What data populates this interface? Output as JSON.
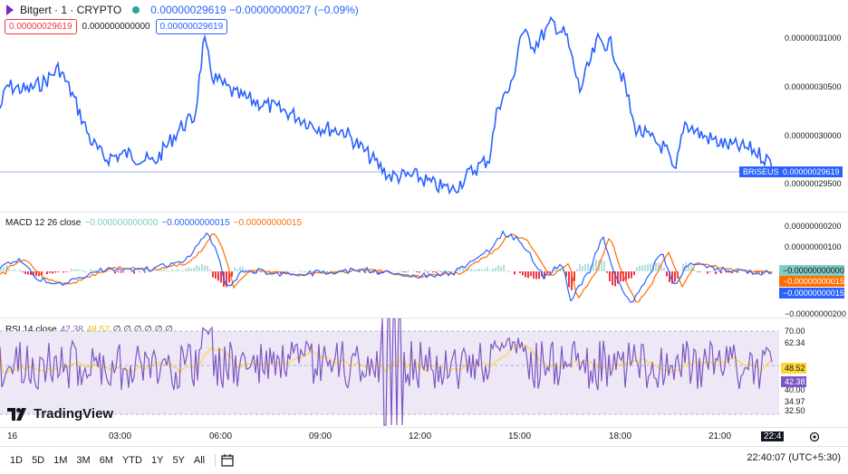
{
  "header": {
    "symbol": "Bitgert · 1 · CRYPTO",
    "quote": "0.00000029619 −0.00000000027 (−0.09%)",
    "bid": "0.00000029619",
    "spread": "0.000000000000",
    "ask": "0.00000029619"
  },
  "price_axis": {
    "labels": [
      "0.00000031000",
      "0.00000030500",
      "0.00000030000",
      "0.00000029500"
    ],
    "symbol_tag": "BRISEUSC",
    "last_price": "0.00000029619"
  },
  "macd": {
    "label": "MACD 12 26 close",
    "v1": "−0.000000000000",
    "v2": "−0.00000000015",
    "v3": "−0.00000000015",
    "axis": [
      "0.00000000200",
      "0.00000000100",
      "−0.00000000200"
    ],
    "tag_hist": "−0.00000000000",
    "tag_signal": "−0.00000000015",
    "tag_macd": "−0.00000000015"
  },
  "rsi": {
    "label": "RSI 14 close",
    "v1": "42.38",
    "v2": "48.52",
    "rest": "∅ ∅ ∅ ∅ ∅ ∅",
    "axis": [
      "70.00",
      "62.34",
      "40.00",
      "34.97",
      "32.50"
    ],
    "tag_ma": "48.52",
    "tag_rsi": "42.38"
  },
  "time_axis": [
    "16",
    "03:00",
    "06:00",
    "09:00",
    "12:00",
    "15:00",
    "18:00",
    "21:00",
    "22:4"
  ],
  "timeframes": [
    "1D",
    "5D",
    "1M",
    "3M",
    "6M",
    "YTD",
    "1Y",
    "5Y",
    "All"
  ],
  "clock": "22:40:07 (UTC+5:30)",
  "brand": "TradingView",
  "colors": {
    "price": "#2962ff",
    "macd_line": "#2962ff",
    "signal_line": "#ff6d00",
    "hist_pos": "#b2dfdb",
    "hist_neg": "#f23645",
    "rsi_line": "#7e57c2",
    "rsi_ma": "#fdd835",
    "rsi_band": "#ede7f6"
  }
}
